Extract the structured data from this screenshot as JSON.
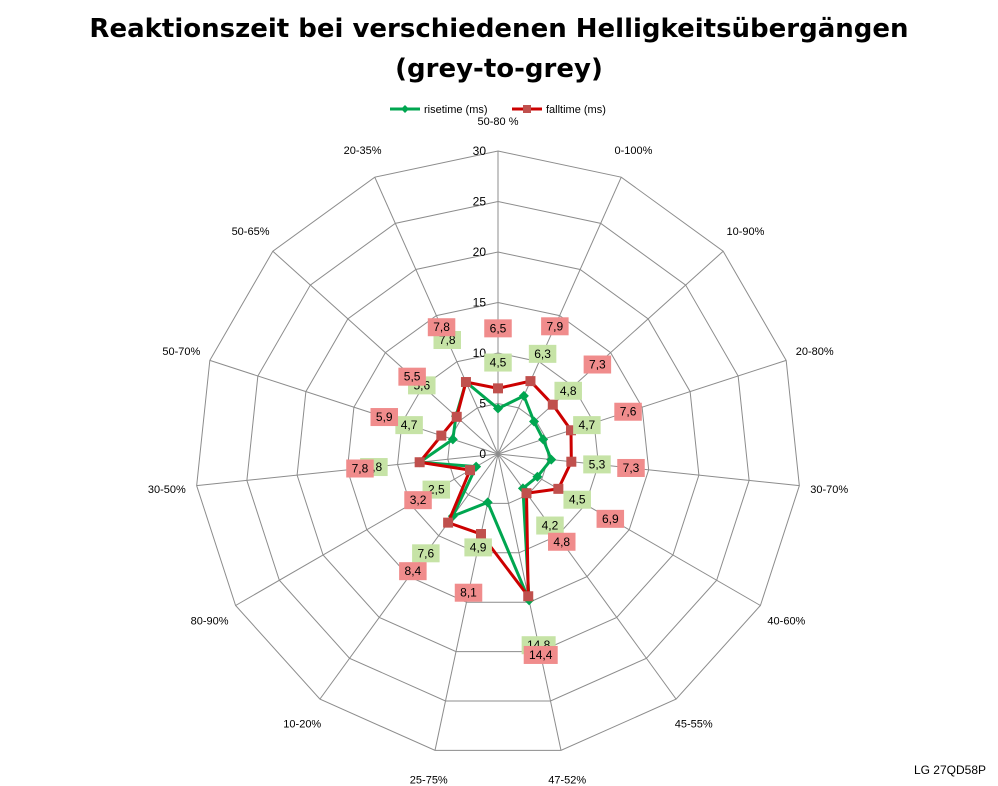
{
  "chart_data": {
    "type": "radar",
    "title": "Reaktionszeit bei verschiedenen Helligkeitsübergängen",
    "subtitle": "(grey-to-grey)",
    "categories": [
      "50-80 %",
      "0-100%",
      "10-90%",
      "20-80%",
      "30-70%",
      "40-60%",
      "45-55%",
      "47-52%",
      "25-75%",
      "10-20%",
      "80-90%",
      "30-50%",
      "50-70%",
      "50-65%",
      "20-35%"
    ],
    "axis": {
      "min": 0,
      "max": 30,
      "ticks": [
        0,
        5,
        10,
        15,
        20,
        25,
        30
      ]
    },
    "legend_position": "top",
    "series": [
      {
        "name": "risetime (ms)",
        "color": "#00a650",
        "label_bg": "#c6e3a6",
        "values": [
          4.5,
          6.3,
          4.8,
          4.7,
          5.3,
          4.5,
          4.2,
          14.8,
          4.9,
          7.6,
          2.5,
          7.8,
          4.7,
          5.6,
          7.8
        ],
        "labels": [
          "4,5",
          "6,3",
          "4,8",
          "4,7",
          "5,3",
          "4,5",
          "4,2",
          "14,8",
          "4,9",
          "7,6",
          "2,5",
          "7,8",
          "4,7",
          "5,6",
          "7,8"
        ]
      },
      {
        "name": "falltime (ms)",
        "color": "#cc0000",
        "label_bg": "#f08c8c",
        "values": [
          6.5,
          7.9,
          7.3,
          7.6,
          7.3,
          6.9,
          4.8,
          14.4,
          8.1,
          8.4,
          3.2,
          7.8,
          5.9,
          5.5,
          7.8
        ],
        "labels": [
          "6,5",
          "7,9",
          "7,3",
          "7,6",
          "7,3",
          "6,9",
          "4,8",
          "14,4",
          "8,1",
          "8,4",
          "3,2",
          "7,8",
          "5,9",
          "5,5",
          "7,8"
        ]
      }
    ]
  },
  "footer": "LG 27QD58P"
}
